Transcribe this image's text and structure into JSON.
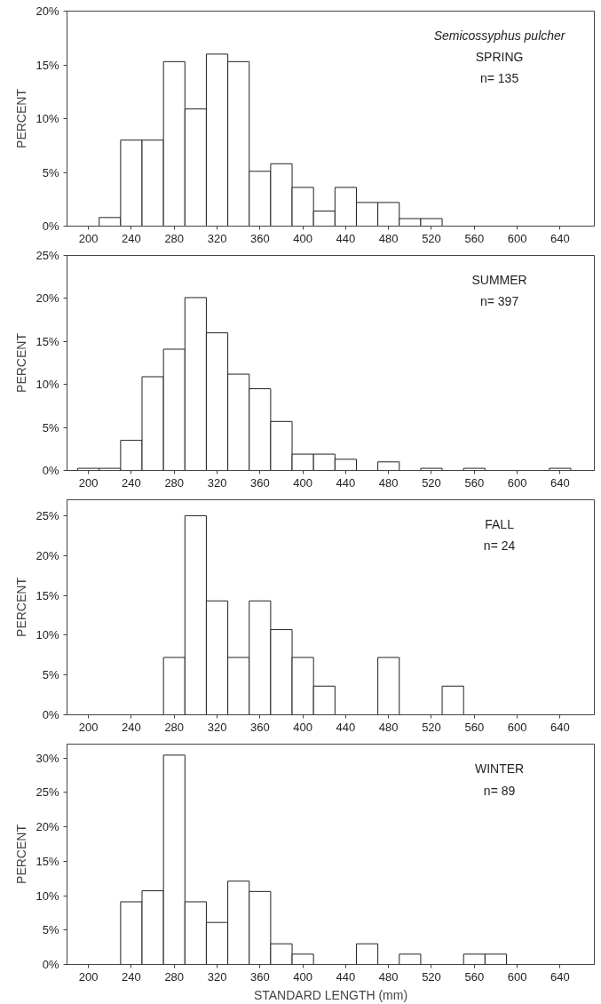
{
  "chart_data": [
    {
      "type": "histogram",
      "ylabel": "PERCENT",
      "annotations": [
        "Semicossyphus pulcher",
        "SPRING",
        "n= 135"
      ],
      "bins": [
        190,
        210,
        230,
        250,
        270,
        290,
        310,
        330,
        350,
        370,
        390,
        410,
        430,
        450,
        470,
        490,
        510,
        530,
        550,
        570,
        590,
        610,
        630,
        650,
        670
      ],
      "values": [
        0,
        0.8,
        8.0,
        8.0,
        15.3,
        10.9,
        16.0,
        15.3,
        5.1,
        5.8,
        3.6,
        1.4,
        3.6,
        2.2,
        2.2,
        0.7,
        0.7,
        0,
        0,
        0,
        0,
        0,
        0,
        0
      ],
      "color": "#ffffff",
      "xlim": [
        180,
        672
      ],
      "ylim": [
        0,
        20
      ],
      "xticks": [
        200,
        240,
        280,
        320,
        360,
        400,
        440,
        480,
        520,
        560,
        600,
        640
      ],
      "yticks": [
        {
          "value": 0,
          "label": "0%"
        },
        {
          "value": 5,
          "label": "5%"
        },
        {
          "value": 10,
          "label": "10%"
        },
        {
          "value": 15,
          "label": "15%"
        },
        {
          "value": 20,
          "label": "20%"
        }
      ],
      "grid": false
    },
    {
      "type": "histogram",
      "ylabel": "PERCENT",
      "annotations": [
        "SUMMER",
        "n= 397"
      ],
      "bins": [
        190,
        210,
        230,
        250,
        270,
        290,
        310,
        330,
        350,
        370,
        390,
        410,
        430,
        450,
        470,
        490,
        510,
        530,
        550,
        570,
        590,
        610,
        630,
        650,
        670
      ],
      "values": [
        0.25,
        0.25,
        3.5,
        10.9,
        14.1,
        20.1,
        16.0,
        11.2,
        9.5,
        5.7,
        1.9,
        1.9,
        1.3,
        0,
        1.0,
        0,
        0.25,
        0,
        0.25,
        0,
        0,
        0,
        0.25,
        0
      ],
      "color": "#ffffff",
      "xlim": [
        180,
        672
      ],
      "ylim": [
        0,
        25
      ],
      "xticks": [
        200,
        240,
        280,
        320,
        360,
        400,
        440,
        480,
        520,
        560,
        600,
        640
      ],
      "yticks": [
        {
          "value": 0,
          "label": "0%"
        },
        {
          "value": 5,
          "label": "5%"
        },
        {
          "value": 10,
          "label": "10%"
        },
        {
          "value": 15,
          "label": "15%"
        },
        {
          "value": 20,
          "label": "20%"
        },
        {
          "value": 25,
          "label": "25%"
        }
      ],
      "grid": false
    },
    {
      "type": "histogram",
      "ylabel": "PERCENT",
      "annotations": [
        "FALL",
        "n= 24"
      ],
      "bins": [
        190,
        210,
        230,
        250,
        270,
        290,
        310,
        330,
        350,
        370,
        390,
        410,
        430,
        450,
        470,
        490,
        510,
        530,
        550,
        570,
        590,
        610,
        630,
        650,
        670
      ],
      "values": [
        0,
        0,
        0,
        0,
        7.2,
        25.0,
        14.3,
        7.2,
        14.3,
        10.7,
        7.2,
        3.6,
        0,
        0,
        7.2,
        0,
        0,
        3.6,
        0,
        0,
        0,
        0,
        0,
        0
      ],
      "color": "#ffffff",
      "xlim": [
        180,
        672
      ],
      "ylim": [
        0,
        27
      ],
      "xticks": [
        200,
        240,
        280,
        320,
        360,
        400,
        440,
        480,
        520,
        560,
        600,
        640
      ],
      "yticks": [
        {
          "value": 0,
          "label": "0%"
        },
        {
          "value": 5,
          "label": "5%"
        },
        {
          "value": 10,
          "label": "10%"
        },
        {
          "value": 15,
          "label": "15%"
        },
        {
          "value": 20,
          "label": "20%"
        },
        {
          "value": 25,
          "label": "25%"
        }
      ],
      "grid": false
    },
    {
      "type": "histogram",
      "ylabel": "PERCENT",
      "xlabel": "STANDARD LENGTH (mm)",
      "annotations": [
        "WINTER",
        "n= 89"
      ],
      "bins": [
        190,
        210,
        230,
        250,
        270,
        290,
        310,
        330,
        350,
        370,
        390,
        410,
        430,
        450,
        470,
        490,
        510,
        530,
        550,
        570,
        590,
        610,
        630,
        650,
        670
      ],
      "values": [
        0,
        0,
        9.1,
        10.7,
        30.4,
        9.1,
        6.1,
        12.1,
        10.6,
        3.0,
        1.5,
        0,
        0,
        3.0,
        0,
        1.5,
        0,
        0,
        1.5,
        1.5,
        0,
        0,
        0,
        0
      ],
      "color": "#ffffff",
      "xlim": [
        180,
        672
      ],
      "ylim": [
        0,
        32
      ],
      "xticks": [
        200,
        240,
        280,
        320,
        360,
        400,
        440,
        480,
        520,
        560,
        600,
        640
      ],
      "yticks": [
        {
          "value": 0,
          "label": "0%"
        },
        {
          "value": 5,
          "label": "5%"
        },
        {
          "value": 10,
          "label": "10%"
        },
        {
          "value": 15,
          "label": "15%"
        },
        {
          "value": 20,
          "label": "20%"
        },
        {
          "value": 25,
          "label": "25%"
        },
        {
          "value": 30,
          "label": "30%"
        }
      ],
      "grid": false
    }
  ]
}
